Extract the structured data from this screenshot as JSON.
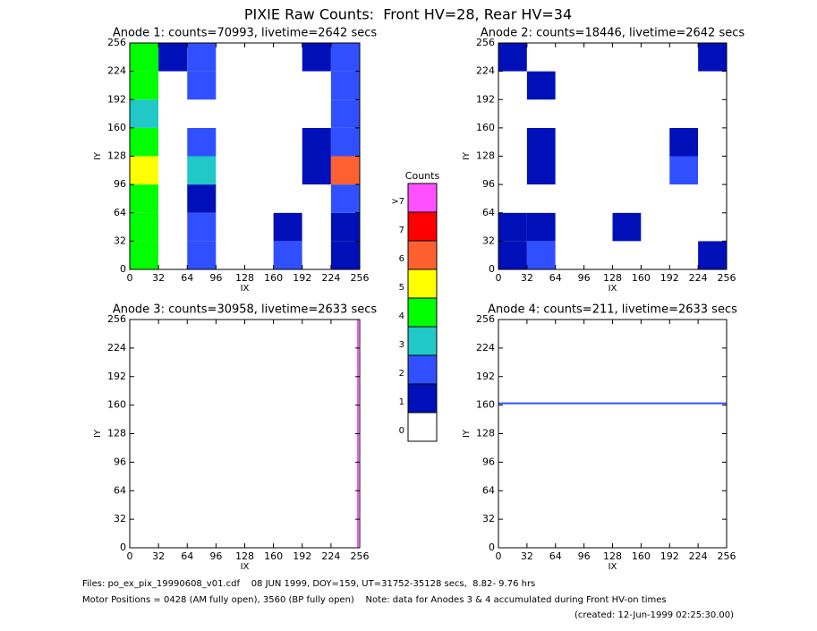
{
  "title": "PIXIE Raw Counts:  Front HV=28, Rear HV=34",
  "chart_data": [
    {
      "type": "heatmap",
      "title": "Anode 1: counts=70993, livetime=2642 secs",
      "xlabel": "IX",
      "ylabel": "IY",
      "xlim": [
        0,
        256
      ],
      "ylim": [
        0,
        256
      ],
      "xticks": [
        0,
        32,
        64,
        96,
        128,
        160,
        192,
        224,
        256
      ],
      "yticks": [
        0,
        32,
        64,
        96,
        128,
        160,
        192,
        224,
        256
      ],
      "bins": [
        0,
        32,
        64,
        96,
        128,
        160,
        192,
        224,
        256
      ],
      "z": [
        [
          4,
          0,
          2,
          0,
          0,
          2,
          0,
          1
        ],
        [
          4,
          0,
          2,
          0,
          0,
          1,
          0,
          1
        ],
        [
          4,
          0,
          1,
          0,
          0,
          0,
          0,
          2
        ],
        [
          5,
          0,
          3,
          0,
          0,
          0,
          1,
          6
        ],
        [
          4,
          0,
          2,
          0,
          0,
          0,
          1,
          2
        ],
        [
          3,
          0,
          0,
          0,
          0,
          0,
          0,
          2
        ],
        [
          4,
          0,
          2,
          0,
          0,
          0,
          0,
          2
        ],
        [
          4,
          1,
          2,
          0,
          0,
          0,
          1,
          2
        ]
      ],
      "lines": []
    },
    {
      "type": "heatmap",
      "title": "Anode 2: counts=18446, livetime=2642 secs",
      "xlabel": "IX",
      "ylabel": "IY",
      "xlim": [
        0,
        256
      ],
      "ylim": [
        0,
        256
      ],
      "xticks": [
        0,
        32,
        64,
        96,
        128,
        160,
        192,
        224,
        256
      ],
      "yticks": [
        0,
        32,
        64,
        96,
        128,
        160,
        192,
        224,
        256
      ],
      "bins": [
        0,
        32,
        64,
        96,
        128,
        160,
        192,
        224,
        256
      ],
      "z": [
        [
          1,
          2,
          0,
          0,
          0,
          0,
          0,
          1
        ],
        [
          1,
          1,
          0,
          0,
          1,
          0,
          0,
          0
        ],
        [
          0,
          0,
          0,
          0,
          0,
          0,
          0,
          0
        ],
        [
          0,
          1,
          0,
          0,
          0,
          0,
          2,
          0
        ],
        [
          0,
          1,
          0,
          0,
          0,
          0,
          1,
          0
        ],
        [
          0,
          0,
          0,
          0,
          0,
          0,
          0,
          0
        ],
        [
          0,
          1,
          0,
          0,
          0,
          0,
          0,
          0
        ],
        [
          1,
          0,
          0,
          0,
          0,
          0,
          0,
          1
        ]
      ],
      "lines": []
    },
    {
      "type": "heatmap",
      "title": "Anode 3: counts=30958, livetime=2633 secs",
      "xlabel": "IX",
      "ylabel": "IY",
      "xlim": [
        0,
        256
      ],
      "ylim": [
        0,
        256
      ],
      "xticks": [
        0,
        32,
        64,
        96,
        128,
        160,
        192,
        224,
        256
      ],
      "yticks": [
        0,
        32,
        64,
        96,
        128,
        160,
        192,
        224,
        256
      ],
      "bins": [
        0,
        32,
        64,
        96,
        128,
        160,
        192,
        224,
        256
      ],
      "z": [
        [
          0,
          0,
          0,
          0,
          0,
          0,
          0,
          0
        ],
        [
          0,
          0,
          0,
          0,
          0,
          0,
          0,
          0
        ],
        [
          0,
          0,
          0,
          0,
          0,
          0,
          0,
          0
        ],
        [
          0,
          0,
          0,
          0,
          0,
          0,
          0,
          0
        ],
        [
          0,
          0,
          0,
          0,
          0,
          0,
          0,
          0
        ],
        [
          0,
          0,
          0,
          0,
          0,
          0,
          0,
          0
        ],
        [
          0,
          0,
          0,
          0,
          0,
          0,
          0,
          0
        ],
        [
          0,
          0,
          0,
          0,
          0,
          0,
          0,
          0
        ]
      ],
      "lines": [
        {
          "x": [
            254,
            254
          ],
          "y": [
            0,
            256
          ],
          "level": 8
        }
      ]
    },
    {
      "type": "heatmap",
      "title": "Anode 4: counts=211, livetime=2633 secs",
      "xlabel": "IX",
      "ylabel": "IY",
      "xlim": [
        0,
        256
      ],
      "ylim": [
        0,
        256
      ],
      "xticks": [
        0,
        32,
        64,
        96,
        128,
        160,
        192,
        224,
        256
      ],
      "yticks": [
        0,
        32,
        64,
        96,
        128,
        160,
        192,
        224,
        256
      ],
      "bins": [
        0,
        32,
        64,
        96,
        128,
        160,
        192,
        224,
        256
      ],
      "z": [
        [
          0,
          0,
          0,
          0,
          0,
          0,
          0,
          0
        ],
        [
          0,
          0,
          0,
          0,
          0,
          0,
          0,
          0
        ],
        [
          0,
          0,
          0,
          0,
          0,
          0,
          0,
          0
        ],
        [
          0,
          0,
          0,
          0,
          0,
          0,
          0,
          0
        ],
        [
          0,
          0,
          0,
          0,
          0,
          0,
          0,
          0
        ],
        [
          0,
          0,
          0,
          0,
          0,
          0,
          0,
          0
        ],
        [
          0,
          0,
          0,
          0,
          0,
          0,
          0,
          0
        ],
        [
          0,
          0,
          0,
          0,
          0,
          0,
          0,
          0
        ]
      ],
      "lines": [
        {
          "x": [
            0,
            256
          ],
          "y": [
            162,
            162
          ],
          "level": 2
        }
      ]
    }
  ],
  "colorbar": {
    "title": "Counts",
    "levels": [
      0,
      1,
      2,
      3,
      4,
      5,
      6,
      7,
      {
        "value": 8,
        "label": ">7"
      }
    ],
    "colors": [
      "#ffffff",
      "#0010b8",
      "#3050ff",
      "#20c8c8",
      "#00ff00",
      "#ffff00",
      "#ff6030",
      "#ff0000",
      "#ff50ff"
    ]
  },
  "footer": [
    "Files: po_ex_pix_19990608_v01.cdf    08 JUN 1999, DOY=159, UT=31752-35128 secs,  8.82- 9.76 hrs",
    "Motor Positions = 0428 (AM fully open), 3560 (BP fully open)    Note: data for Anodes 3 & 4 accumulated during Front HV-on times",
    "(created: 12-Jun-1999 02:25:30.00)"
  ]
}
